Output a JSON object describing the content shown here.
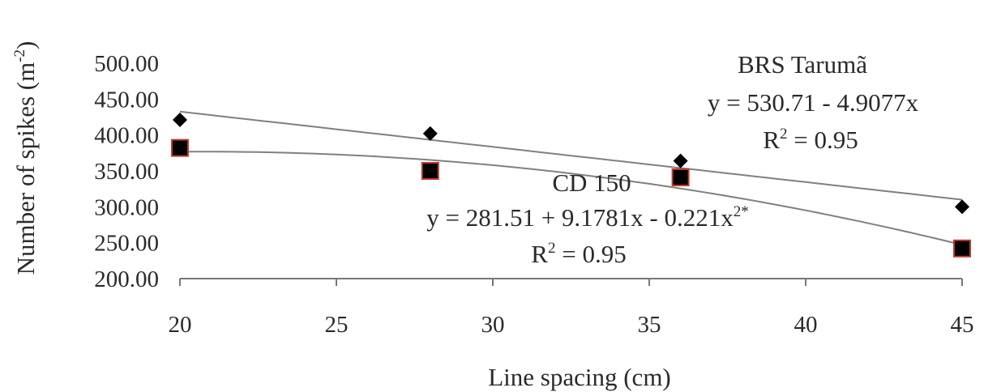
{
  "chart_data": {
    "type": "scatter",
    "xlabel": "Line spacing (cm)",
    "ylabel": "Number of spikes (m",
    "ylabel_sup": "-2",
    "ylabel_end": ")",
    "xlim": [
      20,
      45
    ],
    "ylim": [
      200,
      500
    ],
    "xticks": [
      "20",
      "25",
      "30",
      "35",
      "40",
      "45"
    ],
    "yticks": [
      "200.00",
      "250.00",
      "300.00",
      "350.00",
      "400.00",
      "450.00",
      "500.00"
    ],
    "grid": false,
    "series": [
      {
        "name": "BRS Tarumã",
        "marker": "diamond",
        "color": "#000000",
        "x": [
          20,
          28,
          36,
          45
        ],
        "y": [
          421,
          402,
          364,
          300
        ],
        "trend": {
          "type": "linear",
          "a": 530.71,
          "b": -4.9077
        },
        "equation": "y = 530.71 - 4.9077x",
        "r2_label": "R",
        "r2_sup": "2",
        "r2_value": " = 0.95"
      },
      {
        "name": "CD 150",
        "marker": "square",
        "color": "#000000",
        "edge_color": "#c0392b",
        "x": [
          20,
          28,
          36,
          45
        ],
        "y": [
          382,
          350,
          341,
          242
        ],
        "trend": {
          "type": "quadratic",
          "a": 281.51,
          "b": 9.1781,
          "c": -0.221
        },
        "equation": "y = 281.51 + 9.1781x - 0.221x",
        "equation_sup": "2*",
        "r2_label": "R",
        "r2_sup": "2",
        "r2_value": " = 0.95"
      }
    ],
    "trend_color": "#808080"
  }
}
